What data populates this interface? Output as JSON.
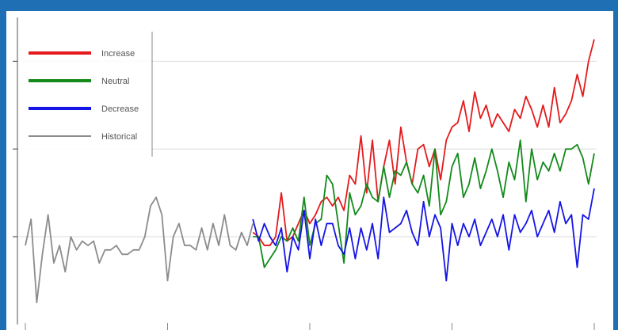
{
  "chart_data": {
    "type": "line",
    "title": "",
    "xlabel": "",
    "ylabel": "",
    "grid": true,
    "legend_placement": "top-left",
    "xlim": [
      0,
      100
    ],
    "ylim": [
      -2.0,
      5.0
    ],
    "series": [
      {
        "name": "Increase",
        "color": "#e41a1c",
        "x": [
          40,
          41,
          42,
          43,
          44,
          45,
          46,
          47,
          48,
          49,
          50,
          51,
          52,
          53,
          54,
          55,
          56,
          57,
          58,
          59,
          60,
          61,
          62,
          63,
          64,
          65,
          66,
          67,
          68,
          69,
          70,
          71,
          72,
          73,
          74,
          75,
          76,
          77,
          78,
          79,
          80,
          81,
          82,
          83,
          84,
          85,
          86,
          87,
          88,
          89,
          90,
          91,
          92,
          93,
          94,
          95,
          96,
          97,
          98,
          99,
          100
        ],
        "values": [
          0.1,
          0.0,
          -0.2,
          -0.2,
          0.0,
          1.0,
          -0.1,
          0.0,
          0.3,
          0.6,
          0.3,
          0.5,
          0.8,
          0.9,
          0.7,
          0.9,
          0.6,
          1.4,
          1.2,
          2.3,
          1.0,
          2.2,
          0.8,
          1.6,
          2.2,
          1.2,
          2.5,
          1.7,
          1.2,
          2.0,
          2.1,
          1.6,
          2.0,
          1.3,
          2.2,
          2.5,
          2.6,
          3.1,
          2.4,
          3.3,
          2.7,
          3.0,
          2.5,
          2.8,
          2.6,
          2.4,
          2.9,
          2.7,
          3.2,
          2.9,
          2.5,
          3.0,
          2.5,
          3.4,
          2.6,
          2.8,
          3.1,
          3.7,
          3.2,
          4.0,
          4.5
        ]
      },
      {
        "name": "Neutral",
        "color": "#138a1a",
        "x": [
          40,
          41,
          42,
          43,
          44,
          45,
          46,
          47,
          48,
          49,
          50,
          51,
          52,
          53,
          54,
          55,
          56,
          57,
          58,
          59,
          60,
          61,
          62,
          63,
          64,
          65,
          66,
          67,
          68,
          69,
          70,
          71,
          72,
          73,
          74,
          75,
          76,
          77,
          78,
          79,
          80,
          81,
          82,
          83,
          84,
          85,
          86,
          87,
          88,
          89,
          90,
          91,
          92,
          93,
          94,
          95,
          96,
          97,
          98,
          99,
          100
        ],
        "values": [
          0.0,
          0.0,
          -0.7,
          -0.5,
          -0.3,
          0.0,
          -0.1,
          0.2,
          -0.1,
          0.9,
          -0.2,
          0.3,
          0.4,
          1.4,
          1.2,
          0.3,
          -0.6,
          1.0,
          0.5,
          0.7,
          1.2,
          0.9,
          0.8,
          1.6,
          0.9,
          1.5,
          1.4,
          1.7,
          1.2,
          1.0,
          1.4,
          0.7,
          2.0,
          0.5,
          0.8,
          1.6,
          1.9,
          0.9,
          1.2,
          1.8,
          1.1,
          1.5,
          2.0,
          1.5,
          0.9,
          1.7,
          1.3,
          2.2,
          0.8,
          2.0,
          1.3,
          1.7,
          1.5,
          1.9,
          1.5,
          2.0,
          2.0,
          2.1,
          1.8,
          1.2,
          1.9
        ]
      },
      {
        "name": "Decrease",
        "color": "#1515e6",
        "x": [
          40,
          41,
          42,
          43,
          44,
          45,
          46,
          47,
          48,
          49,
          50,
          51,
          52,
          53,
          54,
          55,
          56,
          57,
          58,
          59,
          60,
          61,
          62,
          63,
          64,
          65,
          66,
          67,
          68,
          69,
          70,
          71,
          72,
          73,
          74,
          75,
          76,
          77,
          78,
          79,
          80,
          81,
          82,
          83,
          84,
          85,
          86,
          87,
          88,
          89,
          90,
          91,
          92,
          93,
          94,
          95,
          96,
          97,
          98,
          99,
          100
        ],
        "values": [
          0.4,
          -0.1,
          0.3,
          0.0,
          -0.2,
          0.2,
          -0.8,
          0.0,
          -0.3,
          0.6,
          -0.5,
          0.4,
          -0.2,
          0.3,
          0.3,
          -0.2,
          -0.4,
          0.2,
          -0.5,
          0.2,
          -0.3,
          0.3,
          -0.5,
          0.9,
          0.1,
          0.2,
          0.3,
          0.6,
          0.1,
          -0.2,
          0.8,
          0.0,
          0.5,
          0.2,
          -1.0,
          0.3,
          -0.2,
          0.3,
          0.0,
          0.4,
          -0.2,
          0.1,
          0.4,
          0.0,
          0.5,
          -0.3,
          0.5,
          0.1,
          0.3,
          0.6,
          0.0,
          0.3,
          0.6,
          0.1,
          0.8,
          0.3,
          0.5,
          -0.7,
          0.5,
          0.4,
          1.1
        ]
      },
      {
        "name": "Historical",
        "color": "#8c8c8c",
        "x": [
          0,
          1,
          2,
          3,
          4,
          5,
          6,
          7,
          8,
          9,
          10,
          11,
          12,
          13,
          14,
          15,
          16,
          17,
          18,
          19,
          20,
          21,
          22,
          23,
          24,
          25,
          26,
          27,
          28,
          29,
          30,
          31,
          32,
          33,
          34,
          35,
          36,
          37,
          38,
          39,
          40
        ],
        "values": [
          -0.2,
          0.4,
          -1.5,
          -0.4,
          0.5,
          -0.6,
          -0.2,
          -0.8,
          0.0,
          -0.3,
          -0.1,
          -0.2,
          -0.1,
          -0.6,
          -0.3,
          -0.3,
          -0.2,
          -0.4,
          -0.4,
          -0.3,
          -0.3,
          0.0,
          0.7,
          0.9,
          0.5,
          -1.0,
          0.0,
          0.3,
          -0.2,
          -0.2,
          -0.3,
          0.2,
          -0.3,
          0.3,
          -0.2,
          0.5,
          -0.2,
          -0.3,
          0.1,
          -0.2,
          0.3
        ]
      }
    ]
  }
}
